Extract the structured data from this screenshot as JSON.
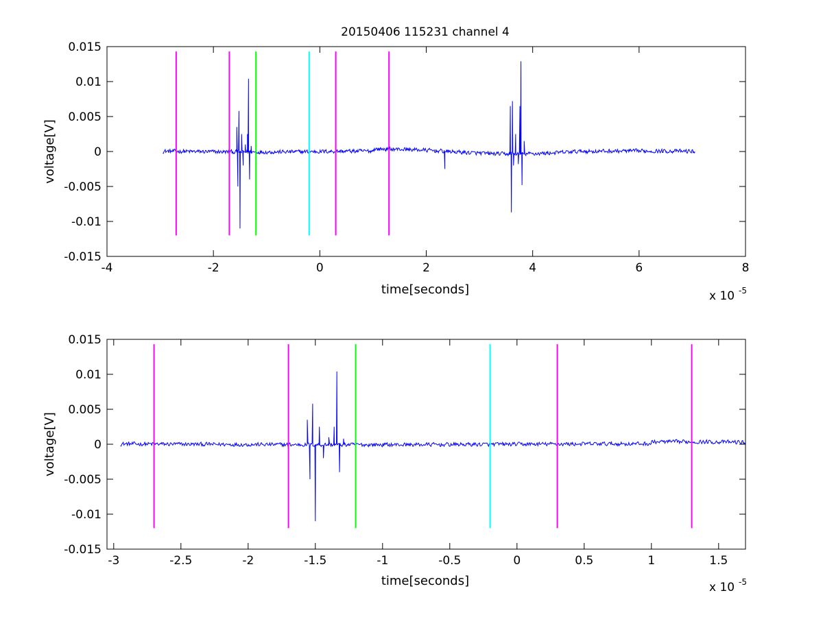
{
  "figure": {
    "background": "#ffffff"
  },
  "chart_data": [
    {
      "type": "line",
      "title": "20150406 115231 channel 4",
      "xlabel": "time[seconds]",
      "ylabel": "voltage[V]",
      "x_multiplier_label": "x 10",
      "x_multiplier_exp": "-5",
      "xlim": [
        -4e-05,
        8e-05
      ],
      "ylim": [
        -0.015,
        0.015
      ],
      "xticks": [
        -4e-05,
        -2e-05,
        0,
        2e-05,
        4e-05,
        6e-05,
        8e-05
      ],
      "xtick_labels": [
        "-4",
        "-2",
        "0",
        "2",
        "4",
        "6",
        "8"
      ],
      "yticks": [
        -0.015,
        -0.01,
        -0.005,
        0,
        0.005,
        0.01,
        0.015
      ],
      "ytick_labels": [
        "-0.015",
        "-0.01",
        "-0.005",
        "0",
        "0.005",
        "0.01",
        "0.015"
      ],
      "grid": false,
      "signal": {
        "color": "#0000ff",
        "x_range": [
          -2.95e-05,
          7.05e-05
        ],
        "noise_amplitude": 0.0003,
        "events": [
          {
            "x": -1.7e-05,
            "y": -0.0008
          },
          {
            "x": -1.56e-05,
            "y": 0.0035
          },
          {
            "x": -1.54e-05,
            "y": -0.005
          },
          {
            "x": -1.52e-05,
            "y": 0.0058
          },
          {
            "x": -1.5e-05,
            "y": -0.011
          },
          {
            "x": -1.47e-05,
            "y": 0.0025
          },
          {
            "x": -1.44e-05,
            "y": -0.002
          },
          {
            "x": -1.4e-05,
            "y": 0.001
          },
          {
            "x": -1.36e-05,
            "y": 0.0025
          },
          {
            "x": -1.34e-05,
            "y": 0.0104
          },
          {
            "x": -1.32e-05,
            "y": -0.004
          },
          {
            "x": -1.29e-05,
            "y": 0.0008
          },
          {
            "x": 2.35e-05,
            "y": -0.0025
          },
          {
            "x": 3.58e-05,
            "y": 0.0065
          },
          {
            "x": 3.6e-05,
            "y": -0.0087
          },
          {
            "x": 3.62e-05,
            "y": 0.0072
          },
          {
            "x": 3.64e-05,
            "y": -0.002
          },
          {
            "x": 3.68e-05,
            "y": 0.0025
          },
          {
            "x": 3.73e-05,
            "y": -0.0018
          },
          {
            "x": 3.76e-05,
            "y": 0.0065
          },
          {
            "x": 3.78e-05,
            "y": 0.0129
          },
          {
            "x": 3.8e-05,
            "y": -0.0048
          },
          {
            "x": 3.84e-05,
            "y": 0.0015
          }
        ]
      },
      "markers": [
        {
          "x": -2.7e-05,
          "color": "#ff00ff",
          "y": [
            -0.012,
            0.0143
          ]
        },
        {
          "x": -1.7e-05,
          "color": "#ff00ff",
          "y": [
            -0.012,
            0.0143
          ]
        },
        {
          "x": -1.2e-05,
          "color": "#00ff00",
          "y": [
            -0.012,
            0.0143
          ]
        },
        {
          "x": -2e-06,
          "color": "#00ffff",
          "y": [
            -0.012,
            0.0143
          ]
        },
        {
          "x": 3e-06,
          "color": "#ff00ff",
          "y": [
            -0.012,
            0.0143
          ]
        },
        {
          "x": 1.3e-05,
          "color": "#ff00ff",
          "y": [
            -0.012,
            0.0143
          ]
        }
      ]
    },
    {
      "type": "line",
      "title": "",
      "xlabel": "time[seconds]",
      "ylabel": "voltage[V]",
      "x_multiplier_label": "x 10",
      "x_multiplier_exp": "-5",
      "xlim": [
        -3.05e-05,
        1.7e-05
      ],
      "ylim": [
        -0.015,
        0.015
      ],
      "xticks": [
        -3e-05,
        -2.5e-05,
        -2e-05,
        -1.5e-05,
        -1e-05,
        -5e-06,
        0,
        5e-06,
        1e-05,
        1.5e-05
      ],
      "xtick_labels": [
        "-3",
        "-2.5",
        "-2",
        "-1.5",
        "-1",
        "-0.5",
        "0",
        "0.5",
        "1",
        "1.5"
      ],
      "yticks": [
        -0.015,
        -0.01,
        -0.005,
        0,
        0.005,
        0.01,
        0.015
      ],
      "ytick_labels": [
        "-0.015",
        "-0.01",
        "-0.005",
        "0",
        "0.005",
        "0.01",
        "0.015"
      ],
      "grid": false,
      "signal": {
        "color": "#0000ff",
        "x_range": [
          -2.95e-05,
          1.7e-05
        ],
        "noise_amplitude": 0.0003,
        "events": [
          {
            "x": -1.7e-05,
            "y": -0.0008
          },
          {
            "x": -1.56e-05,
            "y": 0.0035
          },
          {
            "x": -1.54e-05,
            "y": -0.005
          },
          {
            "x": -1.52e-05,
            "y": 0.0058
          },
          {
            "x": -1.5e-05,
            "y": -0.011
          },
          {
            "x": -1.47e-05,
            "y": 0.0025
          },
          {
            "x": -1.44e-05,
            "y": -0.002
          },
          {
            "x": -1.4e-05,
            "y": 0.001
          },
          {
            "x": -1.36e-05,
            "y": 0.0025
          },
          {
            "x": -1.34e-05,
            "y": 0.0104
          },
          {
            "x": -1.32e-05,
            "y": -0.004
          },
          {
            "x": -1.29e-05,
            "y": 0.0008
          }
        ]
      },
      "markers": [
        {
          "x": -2.7e-05,
          "color": "#ff00ff",
          "y": [
            -0.012,
            0.0143
          ]
        },
        {
          "x": -1.7e-05,
          "color": "#ff00ff",
          "y": [
            -0.012,
            0.0143
          ]
        },
        {
          "x": -1.2e-05,
          "color": "#00ff00",
          "y": [
            -0.012,
            0.0143
          ]
        },
        {
          "x": -2e-06,
          "color": "#00ffff",
          "y": [
            -0.012,
            0.0143
          ]
        },
        {
          "x": 3e-06,
          "color": "#ff00ff",
          "y": [
            -0.012,
            0.0143
          ]
        },
        {
          "x": 1.3e-05,
          "color": "#ff00ff",
          "y": [
            -0.012,
            0.0143
          ]
        }
      ]
    }
  ]
}
